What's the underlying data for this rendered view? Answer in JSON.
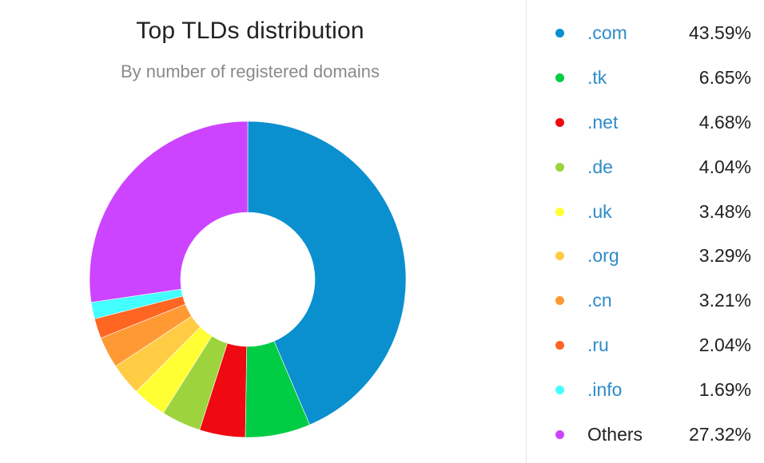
{
  "chart_data": {
    "type": "pie",
    "title": "Top TLDs distribution",
    "subtitle": "By number of registered domains",
    "donut": true,
    "legend_position": "right",
    "slices": [
      {
        "label": ".com",
        "value": 43.59,
        "display": "43.59%",
        "color": "#0a8fcf"
      },
      {
        "label": ".tk",
        "value": 6.65,
        "display": "6.65%",
        "color": "#00cc44"
      },
      {
        "label": ".net",
        "value": 4.68,
        "display": "4.68%",
        "color": "#ee0a10"
      },
      {
        "label": ".de",
        "value": 4.04,
        "display": "4.04%",
        "color": "#9dd33c"
      },
      {
        "label": ".uk",
        "value": 3.48,
        "display": "3.48%",
        "color": "#ffff33"
      },
      {
        "label": ".org",
        "value": 3.29,
        "display": "3.29%",
        "color": "#ffcc44"
      },
      {
        "label": ".cn",
        "value": 3.21,
        "display": "3.21%",
        "color": "#ff9933"
      },
      {
        "label": ".ru",
        "value": 2.04,
        "display": "2.04%",
        "color": "#ff6622"
      },
      {
        "label": ".info",
        "value": 1.69,
        "display": "1.69%",
        "color": "#44ffff"
      },
      {
        "label": "Others",
        "value": 27.32,
        "display": "27.32%",
        "color": "#cc44ff"
      }
    ]
  }
}
